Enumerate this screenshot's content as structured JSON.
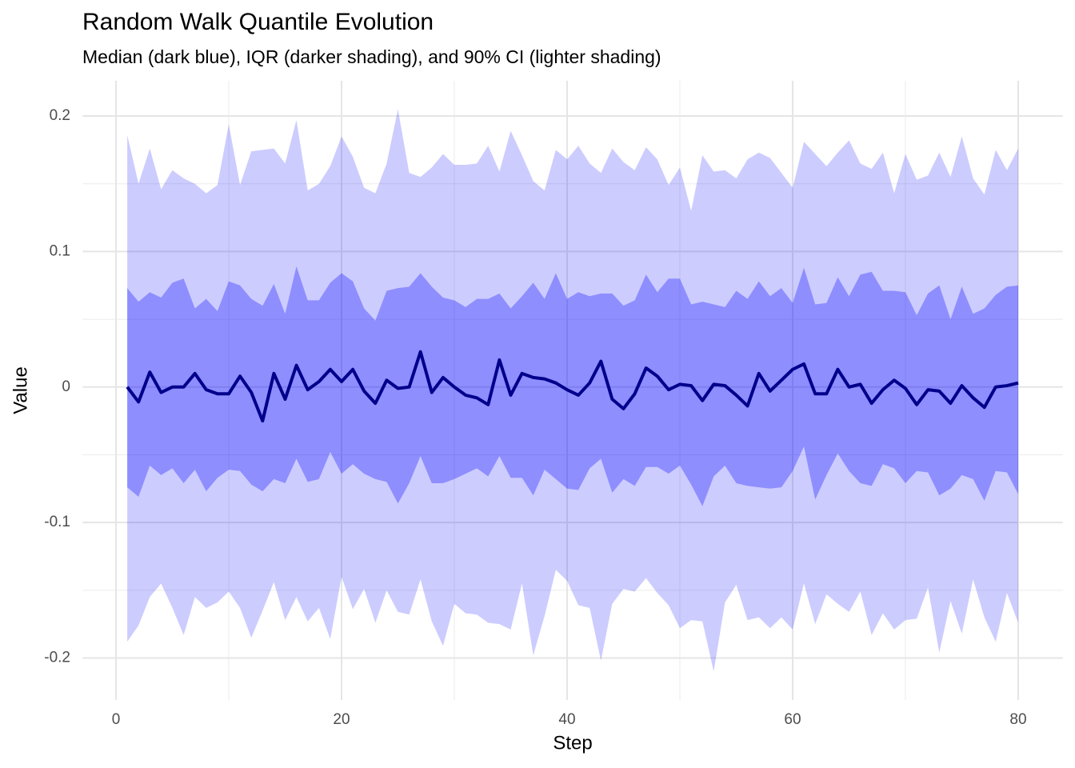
{
  "chart_data": {
    "type": "quantile-band",
    "title": "Random Walk Quantile Evolution",
    "subtitle": "Median (dark blue), IQR (darker shading), and 90% CI (lighter shading)",
    "x_label": "Step",
    "y_label": "Value",
    "xlim": [
      -2.95,
      83.95
    ],
    "xticks": [
      0,
      20,
      40,
      60,
      80
    ],
    "ylim": [
      -0.231,
      0.226
    ],
    "yticks": [
      -0.2,
      -0.1,
      0.0,
      0.1,
      0.2
    ],
    "grid": true,
    "x": [
      1,
      2,
      3,
      4,
      5,
      6,
      7,
      8,
      9,
      10,
      11,
      12,
      13,
      14,
      15,
      16,
      17,
      18,
      19,
      20,
      21,
      22,
      23,
      24,
      25,
      26,
      27,
      28,
      29,
      30,
      31,
      32,
      33,
      34,
      35,
      36,
      37,
      38,
      39,
      40,
      41,
      42,
      43,
      44,
      45,
      46,
      47,
      48,
      49,
      50,
      51,
      52,
      53,
      54,
      55,
      56,
      57,
      58,
      59,
      60,
      61,
      62,
      63,
      64,
      65,
      66,
      67,
      68,
      69,
      70,
      71,
      72,
      73,
      74,
      75,
      76,
      77,
      78,
      79,
      80
    ],
    "bands": [
      {
        "color": "#0000ff",
        "alpha": 0.2,
        "lower": [
          -0.188,
          -0.176,
          -0.155,
          -0.145,
          -0.163,
          -0.183,
          -0.155,
          -0.163,
          -0.159,
          -0.151,
          -0.163,
          -0.185,
          -0.165,
          -0.144,
          -0.172,
          -0.155,
          -0.173,
          -0.163,
          -0.186,
          -0.14,
          -0.164,
          -0.149,
          -0.174,
          -0.15,
          -0.166,
          -0.168,
          -0.142,
          -0.173,
          -0.191,
          -0.16,
          -0.167,
          -0.168,
          -0.174,
          -0.175,
          -0.179,
          -0.145,
          -0.198,
          -0.169,
          -0.135,
          -0.143,
          -0.161,
          -0.163,
          -0.202,
          -0.16,
          -0.149,
          -0.151,
          -0.141,
          -0.152,
          -0.161,
          -0.178,
          -0.172,
          -0.173,
          -0.21,
          -0.159,
          -0.146,
          -0.172,
          -0.17,
          -0.178,
          -0.17,
          -0.179,
          -0.145,
          -0.175,
          -0.153,
          -0.16,
          -0.166,
          -0.151,
          -0.183,
          -0.167,
          -0.179,
          -0.172,
          -0.171,
          -0.148,
          -0.196,
          -0.158,
          -0.182,
          -0.142,
          -0.17,
          -0.188,
          -0.152,
          -0.174
        ],
        "upper": [
          0.186,
          0.15,
          0.176,
          0.146,
          0.16,
          0.154,
          0.15,
          0.143,
          0.149,
          0.194,
          0.149,
          0.174,
          0.175,
          0.176,
          0.165,
          0.197,
          0.145,
          0.15,
          0.163,
          0.185,
          0.17,
          0.147,
          0.143,
          0.165,
          0.205,
          0.158,
          0.155,
          0.162,
          0.172,
          0.164,
          0.164,
          0.165,
          0.178,
          0.159,
          0.189,
          0.171,
          0.152,
          0.145,
          0.175,
          0.168,
          0.178,
          0.165,
          0.158,
          0.176,
          0.166,
          0.16,
          0.177,
          0.168,
          0.149,
          0.162,
          0.13,
          0.171,
          0.159,
          0.16,
          0.154,
          0.168,
          0.173,
          0.169,
          0.158,
          0.147,
          0.181,
          0.172,
          0.163,
          0.173,
          0.182,
          0.165,
          0.161,
          0.173,
          0.143,
          0.172,
          0.153,
          0.156,
          0.173,
          0.155,
          0.185,
          0.154,
          0.142,
          0.175,
          0.16,
          0.176
        ]
      },
      {
        "color": "#0000ff",
        "alpha": 0.3,
        "lower": [
          -0.074,
          -0.081,
          -0.058,
          -0.065,
          -0.06,
          -0.071,
          -0.061,
          -0.077,
          -0.067,
          -0.061,
          -0.062,
          -0.072,
          -0.077,
          -0.068,
          -0.071,
          -0.053,
          -0.07,
          -0.068,
          -0.048,
          -0.064,
          -0.057,
          -0.064,
          -0.068,
          -0.07,
          -0.086,
          -0.071,
          -0.051,
          -0.071,
          -0.071,
          -0.068,
          -0.064,
          -0.06,
          -0.066,
          -0.051,
          -0.067,
          -0.067,
          -0.08,
          -0.061,
          -0.068,
          -0.075,
          -0.076,
          -0.06,
          -0.053,
          -0.078,
          -0.068,
          -0.073,
          -0.059,
          -0.059,
          -0.064,
          -0.058,
          -0.072,
          -0.088,
          -0.066,
          -0.058,
          -0.071,
          -0.073,
          -0.074,
          -0.075,
          -0.074,
          -0.062,
          -0.044,
          -0.083,
          -0.065,
          -0.049,
          -0.062,
          -0.071,
          -0.073,
          -0.057,
          -0.06,
          -0.071,
          -0.062,
          -0.063,
          -0.08,
          -0.075,
          -0.065,
          -0.068,
          -0.084,
          -0.062,
          -0.063,
          -0.079
        ],
        "upper": [
          0.073,
          0.063,
          0.07,
          0.066,
          0.077,
          0.08,
          0.058,
          0.065,
          0.056,
          0.078,
          0.075,
          0.065,
          0.06,
          0.076,
          0.054,
          0.089,
          0.064,
          0.064,
          0.077,
          0.084,
          0.078,
          0.058,
          0.049,
          0.071,
          0.073,
          0.074,
          0.084,
          0.074,
          0.066,
          0.064,
          0.059,
          0.065,
          0.065,
          0.069,
          0.058,
          0.067,
          0.077,
          0.065,
          0.084,
          0.065,
          0.07,
          0.067,
          0.069,
          0.069,
          0.06,
          0.064,
          0.083,
          0.07,
          0.08,
          0.08,
          0.061,
          0.063,
          0.061,
          0.059,
          0.071,
          0.065,
          0.078,
          0.067,
          0.073,
          0.062,
          0.088,
          0.061,
          0.062,
          0.081,
          0.067,
          0.083,
          0.085,
          0.071,
          0.071,
          0.07,
          0.053,
          0.069,
          0.075,
          0.05,
          0.074,
          0.054,
          0.058,
          0.068,
          0.074,
          0.075
        ]
      }
    ],
    "median": {
      "color": "#00008b",
      "values": [
        0.0,
        -0.011,
        0.011,
        -0.004,
        0.0,
        0.0,
        0.01,
        -0.002,
        -0.005,
        -0.005,
        0.008,
        -0.004,
        -0.025,
        0.01,
        -0.009,
        0.016,
        -0.002,
        0.004,
        0.013,
        0.004,
        0.013,
        -0.003,
        -0.012,
        0.005,
        -0.001,
        0.0,
        0.026,
        -0.004,
        0.007,
        0.0,
        -0.006,
        -0.008,
        -0.013,
        0.02,
        -0.006,
        0.01,
        0.007,
        0.006,
        0.003,
        -0.002,
        -0.006,
        0.003,
        0.019,
        -0.009,
        -0.016,
        -0.005,
        0.014,
        0.008,
        -0.002,
        0.002,
        0.001,
        -0.01,
        0.002,
        0.001,
        -0.006,
        -0.014,
        0.01,
        -0.003,
        0.005,
        0.013,
        0.017,
        -0.005,
        -0.005,
        0.013,
        0.0,
        0.002,
        -0.012,
        -0.002,
        0.005,
        -0.001,
        -0.013,
        -0.002,
        -0.003,
        -0.012,
        0.001,
        -0.008,
        -0.015,
        0.0,
        0.001,
        0.003
      ]
    }
  }
}
